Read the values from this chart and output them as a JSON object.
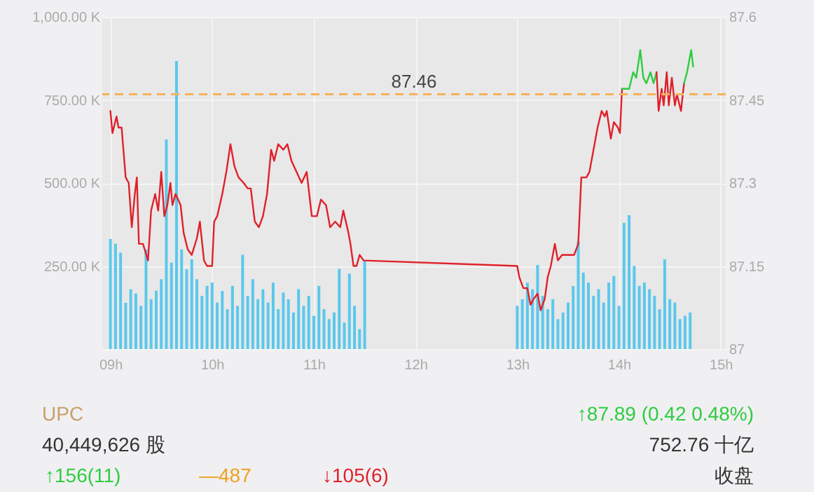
{
  "chart_data": {
    "type": "bar",
    "xlim": [
      8.92,
      15.05
    ],
    "xticks": [
      {
        "value": 9,
        "label": "09h"
      },
      {
        "value": 10,
        "label": "10h"
      },
      {
        "value": 11,
        "label": "11h"
      },
      {
        "value": 12,
        "label": "12h"
      },
      {
        "value": 13,
        "label": "13h"
      },
      {
        "value": 14,
        "label": "14h"
      },
      {
        "value": 15,
        "label": "15h"
      }
    ],
    "ylim": [
      0,
      1000
    ],
    "yticks": [
      {
        "value": 0,
        "label": null
      },
      {
        "value": 250,
        "label": "250.00 K"
      },
      {
        "value": 500,
        "label": "500.00 K"
      },
      {
        "value": 750,
        "label": "750.00 K"
      },
      {
        "value": 1000,
        "label": "1,000.00 K"
      }
    ],
    "y2lim": [
      87,
      87.6
    ],
    "y2ticks": [
      87,
      87.15,
      87.3,
      87.45,
      87.6
    ],
    "grid": true,
    "series": [
      {
        "color": "#5bc8ec",
        "x": [
          9,
          9.05,
          9.1,
          9.15,
          9.2,
          9.25,
          9.3,
          9.35,
          9.4,
          9.45,
          9.5,
          9.55,
          9.6,
          9.65,
          9.7,
          9.75,
          9.8,
          9.85,
          9.9,
          9.95,
          10,
          10.05,
          10.1,
          10.15,
          10.2,
          10.25,
          10.3,
          10.35,
          10.4,
          10.45,
          10.5,
          10.55,
          10.6,
          10.65,
          10.7,
          10.75,
          10.8,
          10.85,
          10.9,
          10.95,
          11,
          11.05,
          11.1,
          11.15,
          11.2,
          11.25,
          11.3,
          11.35,
          11.4,
          11.45,
          11.5,
          13,
          13.05,
          13.1,
          13.15,
          13.2,
          13.25,
          13.3,
          13.35,
          13.4,
          13.45,
          13.5,
          13.55,
          13.6,
          13.65,
          13.7,
          13.75,
          13.8,
          13.85,
          13.9,
          13.95,
          14,
          14.05,
          14.1,
          14.15,
          14.2,
          14.25,
          14.3,
          14.35,
          14.4,
          14.45,
          14.5,
          14.55,
          14.6,
          14.65,
          14.7
        ],
        "values": [
          331,
          317,
          290,
          139,
          180,
          167,
          130,
          300,
          150,
          176,
          210,
          631,
          260,
          867,
          300,
          240,
          270,
          210,
          160,
          190,
          200,
          140,
          175,
          120,
          190,
          130,
          284,
          160,
          210,
          150,
          180,
          140,
          200,
          120,
          170,
          150,
          110,
          180,
          130,
          160,
          100,
          190,
          120,
          90,
          110,
          241,
          80,
          227,
          130,
          60,
          267,
          130,
          150,
          200,
          180,
          253,
          160,
          120,
          150,
          90,
          110,
          140,
          190,
          324,
          230,
          200,
          160,
          180,
          140,
          200,
          220,
          130,
          380,
          403,
          250,
          190,
          200,
          180,
          160,
          120,
          270,
          150,
          140,
          90,
          100,
          110
        ]
      },
      {
        "type": "line",
        "axis": "y2",
        "color": "#e0202a",
        "x": [
          9,
          9.02,
          9.06,
          9.08,
          9.11,
          9.15,
          9.18,
          9.21,
          9.24,
          9.26,
          9.28,
          9.32,
          9.37,
          9.4,
          9.44,
          9.47,
          9.5,
          9.53,
          9.56,
          9.59,
          9.61,
          9.64,
          9.69,
          9.72,
          9.76,
          9.8,
          9.85,
          9.88,
          9.92,
          9.95,
          10,
          10.02,
          10.05,
          10.1,
          10.14,
          10.18,
          10.22,
          10.26,
          10.31,
          10.35,
          10.38,
          10.42,
          10.46,
          10.5,
          10.54,
          10.58,
          10.61,
          10.65,
          10.7,
          10.74,
          10.78,
          10.83,
          10.88,
          10.93,
          10.98,
          11.03,
          11.07,
          11.12,
          11.16,
          11.21,
          11.26,
          11.29,
          11.34,
          11.36,
          11.39,
          11.42,
          11.45,
          11.49,
          13,
          13.02,
          13.06,
          13.1,
          13.13,
          13.16,
          13.2,
          13.23,
          13.27,
          13.3,
          13.33,
          13.37,
          13.4,
          13.44,
          13.47,
          13.52,
          13.56,
          13.6,
          13.63,
          13.68,
          13.71,
          13.75,
          13.79,
          13.83,
          13.86,
          13.88,
          13.92,
          13.95,
          13.99,
          14.01,
          14.03
        ],
        "values": [
          87.43,
          87.39,
          87.42,
          87.4,
          87.4,
          87.31,
          87.3,
          87.22,
          87.28,
          87.31,
          87.19,
          87.19,
          87.16,
          87.25,
          87.28,
          87.25,
          87.32,
          87.24,
          87.26,
          87.3,
          87.26,
          87.28,
          87.26,
          87.21,
          87.18,
          87.17,
          87.2,
          87.23,
          87.16,
          87.15,
          87.15,
          87.23,
          87.24,
          87.28,
          87.32,
          87.37,
          87.33,
          87.31,
          87.3,
          87.29,
          87.29,
          87.23,
          87.22,
          87.24,
          87.28,
          87.36,
          87.34,
          87.37,
          87.36,
          87.37,
          87.34,
          87.32,
          87.3,
          87.32,
          87.24,
          87.24,
          87.27,
          87.26,
          87.22,
          87.23,
          87.22,
          87.25,
          87.21,
          87.19,
          87.15,
          87.15,
          87.17,
          87.16,
          87.15,
          87.13,
          87.11,
          87.11,
          87.08,
          87.09,
          87.1,
          87.07,
          87.09,
          87.13,
          87.15,
          87.19,
          87.16,
          87.17,
          87.17,
          87.17,
          87.17,
          87.19,
          87.31,
          87.31,
          87.32,
          87.36,
          87.4,
          87.43,
          87.42,
          87.43,
          87.38,
          87.41,
          87.4,
          87.39,
          87.47
        ]
      },
      {
        "type": "line",
        "axis": "y2",
        "color": "#2ecc40",
        "x": [
          14.03,
          14.07,
          14.1,
          14.14,
          14.17,
          14.21,
          14.24,
          14.27,
          14.31,
          14.34,
          14.37
        ],
        "values": [
          87.47,
          87.47,
          87.47,
          87.5,
          87.49,
          87.54,
          87.49,
          87.48,
          87.5,
          87.48,
          87.5
        ]
      },
      {
        "type": "line",
        "axis": "y2",
        "color": "#e0202a",
        "x": [
          14.37,
          14.39,
          14.42,
          14.44,
          14.47,
          14.49,
          14.52,
          14.55,
          14.57,
          14.61,
          14.64
        ],
        "values": [
          87.5,
          87.43,
          87.47,
          87.44,
          87.5,
          87.44,
          87.49,
          87.44,
          87.46,
          87.43,
          87.48
        ]
      },
      {
        "type": "line",
        "axis": "y2",
        "color": "#2ecc40",
        "x": [
          14.64,
          14.67,
          14.71,
          14.73
        ],
        "values": [
          87.48,
          87.5,
          87.54,
          87.51
        ]
      }
    ],
    "ref_lines": [
      {
        "axis": "y2",
        "value": 87.46,
        "label": "87.46",
        "color": "#f5b25a",
        "line_style": "dashed"
      }
    ],
    "annotations": [
      "UPC",
      "↑87.89 (0.42 0.48%)",
      "40,449,626 股",
      "752.76 十亿",
      "↑156(11)",
      "—487",
      "↓105(6)",
      "收盘"
    ]
  }
}
